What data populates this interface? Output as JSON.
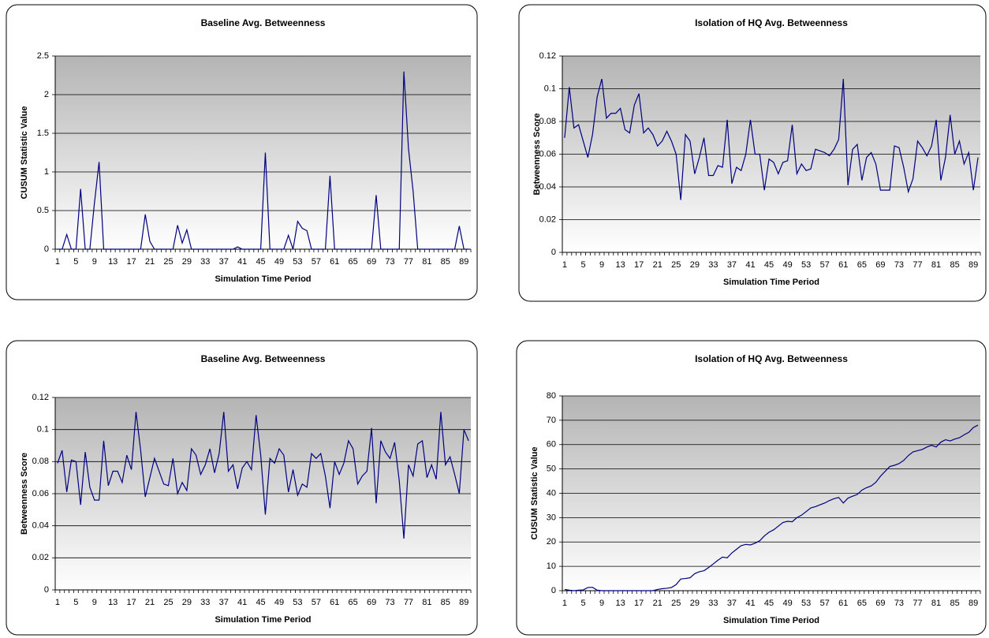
{
  "chart_data": [
    {
      "type": "line",
      "title": "Baseline Avg. Betweenness",
      "x_label": "Simulation Time Period",
      "y_label": "CUSUM Statistic Value",
      "categories": [
        "1",
        null,
        null,
        null,
        "5",
        null,
        null,
        null,
        "9",
        null,
        null,
        null,
        "13",
        null,
        null,
        null,
        "17",
        null,
        null,
        null,
        "21",
        null,
        null,
        null,
        "25",
        null,
        null,
        null,
        "29",
        null,
        null,
        null,
        "33",
        null,
        null,
        null,
        "37",
        null,
        null,
        null,
        "41",
        null,
        null,
        null,
        "45",
        null,
        null,
        null,
        "49",
        null,
        null,
        null,
        "53",
        null,
        null,
        null,
        "57",
        null,
        null,
        null,
        "61",
        null,
        null,
        null,
        "65",
        null,
        null,
        null,
        "69",
        null,
        null,
        null,
        "73",
        null,
        null,
        null,
        "77",
        null,
        null,
        null,
        "81",
        null,
        null,
        null,
        "85",
        null,
        null,
        null,
        "89",
        null
      ],
      "values": [
        0,
        0,
        0.19,
        0,
        0,
        0.78,
        0,
        0,
        0.6,
        1.13,
        0,
        0,
        0,
        0,
        0,
        0,
        0,
        0,
        0,
        0.45,
        0.1,
        0,
        0,
        0,
        0,
        0,
        0.31,
        0.08,
        0.25,
        0,
        0,
        0,
        0,
        0,
        0,
        0,
        0,
        0,
        0,
        0.03,
        0,
        0,
        0,
        0,
        0,
        1.25,
        0,
        0,
        0,
        0,
        0.18,
        0,
        0.36,
        0.27,
        0.24,
        0,
        0,
        0,
        0,
        0.95,
        0,
        0,
        0,
        0,
        0,
        0,
        0,
        0,
        0,
        0.7,
        0,
        0,
        0,
        0,
        0,
        2.3,
        1.3,
        0.75,
        0,
        0,
        0,
        0,
        0,
        0,
        0,
        0,
        0,
        0.3,
        0,
        0
      ],
      "color": "#000080",
      "ylim": [
        0,
        2.5
      ],
      "yticks": [
        0,
        0.5,
        1,
        1.5,
        2,
        2.5
      ],
      "grid": true
    },
    {
      "type": "line",
      "title": "Isolation of HQ Avg. Betweenness",
      "x_label": "Simulation Time Period",
      "y_label": "Betweenness Score",
      "categories": [
        "1",
        null,
        null,
        null,
        "5",
        null,
        null,
        null,
        "9",
        null,
        null,
        null,
        "13",
        null,
        null,
        null,
        "17",
        null,
        null,
        null,
        "21",
        null,
        null,
        null,
        "25",
        null,
        null,
        null,
        "29",
        null,
        null,
        null,
        "33",
        null,
        null,
        null,
        "37",
        null,
        null,
        null,
        "41",
        null,
        null,
        null,
        "45",
        null,
        null,
        null,
        "49",
        null,
        null,
        null,
        "53",
        null,
        null,
        null,
        "57",
        null,
        null,
        null,
        "61",
        null,
        null,
        null,
        "65",
        null,
        null,
        null,
        "69",
        null,
        null,
        null,
        "73",
        null,
        null,
        null,
        "77",
        null,
        null,
        null,
        "81",
        null,
        null,
        null,
        "85",
        null,
        null,
        null,
        "89",
        null
      ],
      "values": [
        0.07,
        0.101,
        0.076,
        0.078,
        0.068,
        0.058,
        0.072,
        0.095,
        0.106,
        0.082,
        0.085,
        0.085,
        0.088,
        0.075,
        0.073,
        0.09,
        0.097,
        0.073,
        0.076,
        0.072,
        0.065,
        0.068,
        0.074,
        0.068,
        0.06,
        0.032,
        0.072,
        0.068,
        0.048,
        0.058,
        0.07,
        0.047,
        0.047,
        0.053,
        0.052,
        0.081,
        0.042,
        0.052,
        0.05,
        0.06,
        0.081,
        0.06,
        0.06,
        0.038,
        0.057,
        0.055,
        0.048,
        0.055,
        0.056,
        0.078,
        0.048,
        0.054,
        0.05,
        0.051,
        0.063,
        0.062,
        0.061,
        0.059,
        0.063,
        0.069,
        0.106,
        0.041,
        0.063,
        0.066,
        0.044,
        0.058,
        0.061,
        0.054,
        0.038,
        0.038,
        0.038,
        0.065,
        0.064,
        0.052,
        0.037,
        0.045,
        0.068,
        0.064,
        0.059,
        0.065,
        0.081,
        0.044,
        0.058,
        0.084,
        0.06,
        0.068,
        0.054,
        0.061,
        0.038,
        0.058
      ],
      "color": "#000080",
      "ylim": [
        0,
        0.12
      ],
      "yticks": [
        0,
        0.02,
        0.04,
        0.06,
        0.08,
        0.1,
        0.12
      ],
      "grid": true
    },
    {
      "type": "line",
      "title": "Baseline Avg. Betweenness",
      "x_label": "Simulation Time Period",
      "y_label": "Betweenness Score",
      "categories": [
        "1",
        null,
        null,
        null,
        "5",
        null,
        null,
        null,
        "9",
        null,
        null,
        null,
        "13",
        null,
        null,
        null,
        "17",
        null,
        null,
        null,
        "21",
        null,
        null,
        null,
        "25",
        null,
        null,
        null,
        "29",
        null,
        null,
        null,
        "33",
        null,
        null,
        null,
        "37",
        null,
        null,
        null,
        "41",
        null,
        null,
        null,
        "45",
        null,
        null,
        null,
        "49",
        null,
        null,
        null,
        "53",
        null,
        null,
        null,
        "57",
        null,
        null,
        null,
        "61",
        null,
        null,
        null,
        "65",
        null,
        null,
        null,
        "69",
        null,
        null,
        null,
        "73",
        null,
        null,
        null,
        "77",
        null,
        null,
        null,
        "81",
        null,
        null,
        null,
        "85",
        null,
        null,
        null,
        "89",
        null
      ],
      "values": [
        0.079,
        0.087,
        0.061,
        0.081,
        0.08,
        0.053,
        0.086,
        0.064,
        0.056,
        0.056,
        0.093,
        0.065,
        0.074,
        0.074,
        0.067,
        0.084,
        0.075,
        0.111,
        0.087,
        0.058,
        0.07,
        0.082,
        0.074,
        0.066,
        0.065,
        0.082,
        0.06,
        0.067,
        0.062,
        0.088,
        0.084,
        0.072,
        0.078,
        0.088,
        0.073,
        0.085,
        0.111,
        0.074,
        0.078,
        0.063,
        0.076,
        0.08,
        0.075,
        0.109,
        0.084,
        0.047,
        0.082,
        0.079,
        0.088,
        0.084,
        0.061,
        0.075,
        0.059,
        0.066,
        0.064,
        0.085,
        0.082,
        0.085,
        0.071,
        0.051,
        0.08,
        0.072,
        0.079,
        0.093,
        0.088,
        0.066,
        0.071,
        0.074,
        0.101,
        0.054,
        0.093,
        0.086,
        0.082,
        0.092,
        0.068,
        0.032,
        0.078,
        0.071,
        0.091,
        0.093,
        0.07,
        0.078,
        0.069,
        0.111,
        0.078,
        0.083,
        0.072,
        0.06,
        0.1,
        0.093
      ],
      "color": "#000080",
      "ylim": [
        0,
        0.12
      ],
      "yticks": [
        0,
        0.02,
        0.04,
        0.06,
        0.08,
        0.1,
        0.12
      ],
      "grid": true
    },
    {
      "type": "line",
      "title": "Isolation of HQ Avg. Betweenness",
      "x_label": "Simulation Time Period",
      "y_label": "CUSUM Statistic Value",
      "categories": [
        "1",
        null,
        null,
        null,
        "5",
        null,
        null,
        null,
        "9",
        null,
        null,
        null,
        "13",
        null,
        null,
        null,
        "17",
        null,
        null,
        null,
        "21",
        null,
        null,
        null,
        "25",
        null,
        null,
        null,
        "29",
        null,
        null,
        null,
        "33",
        null,
        null,
        null,
        "37",
        null,
        null,
        null,
        "41",
        null,
        null,
        null,
        "45",
        null,
        null,
        null,
        "49",
        null,
        null,
        null,
        "53",
        null,
        null,
        null,
        "57",
        null,
        null,
        null,
        "61",
        null,
        null,
        null,
        "65",
        null,
        null,
        null,
        "69",
        null,
        null,
        null,
        "73",
        null,
        null,
        null,
        "77",
        null,
        null,
        null,
        "81",
        null,
        null,
        null,
        "85",
        null,
        null,
        null,
        "89",
        null
      ],
      "values": [
        0.5,
        0.2,
        0,
        0.2,
        0.3,
        1.3,
        1.4,
        0.2,
        0,
        0,
        0,
        0,
        0,
        0,
        0,
        0,
        0,
        0,
        0,
        0,
        0.5,
        0.8,
        1.0,
        1.3,
        2.5,
        4.8,
        5.0,
        5.3,
        7,
        7.8,
        8.2,
        9.5,
        11,
        12.5,
        13.8,
        13.5,
        15.5,
        17,
        18.5,
        19,
        18.8,
        19.5,
        20.5,
        22.5,
        24,
        25,
        26.5,
        28,
        28.5,
        28.3,
        30,
        31,
        32.5,
        34,
        34.5,
        35.3,
        36,
        37,
        37.8,
        38.3,
        36,
        38,
        38.8,
        39.5,
        41.3,
        42.3,
        43,
        44.5,
        47,
        49,
        51,
        51.5,
        52.2,
        53.5,
        55.5,
        57,
        57.5,
        58,
        59,
        59.7,
        59,
        61,
        62,
        61.5,
        62.3,
        62.8,
        64,
        65,
        67,
        68
      ],
      "color": "#000080",
      "ylim": [
        0,
        80
      ],
      "yticks": [
        0,
        10,
        20,
        30,
        40,
        50,
        60,
        70,
        80
      ],
      "grid": true
    }
  ]
}
